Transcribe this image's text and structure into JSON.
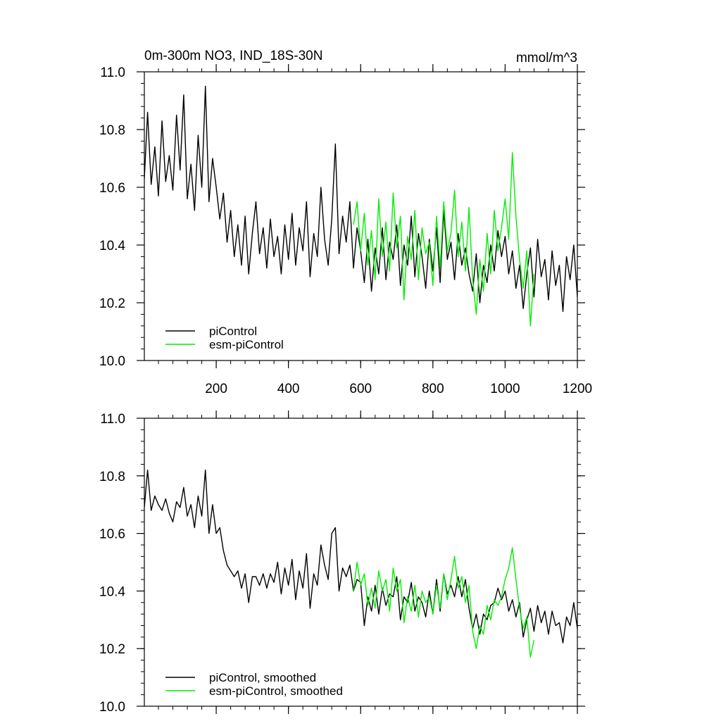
{
  "figure": {
    "title": "0m-300m NO3, IND_18S-30N",
    "units": "mmol/m^3"
  },
  "chart_data": [
    {
      "type": "line",
      "title": "0m-300m NO3, IND_18S-30N",
      "units": "mmol/m^3",
      "xlim": [
        1,
        1200
      ],
      "ylim": [
        10.0,
        11.0
      ],
      "x_ticks": [
        200,
        400,
        600,
        800,
        1000,
        1200
      ],
      "x_tick_labels": [
        "200",
        "400",
        "600",
        "800",
        "1000",
        "1200"
      ],
      "y_ticks": [
        10.0,
        10.2,
        10.4,
        10.6,
        10.8,
        11.0
      ],
      "y_tick_labels": [
        "10.0",
        "10.2",
        "10.4",
        "10.6",
        "10.8",
        "11.0"
      ],
      "legend_position": "bottom-left",
      "series": [
        {
          "name": "piControl",
          "color": "#000000",
          "x": [
            1,
            10,
            20,
            30,
            40,
            50,
            60,
            70,
            80,
            90,
            100,
            110,
            120,
            130,
            140,
            150,
            160,
            170,
            180,
            190,
            200,
            210,
            220,
            230,
            240,
            250,
            260,
            270,
            280,
            290,
            300,
            310,
            320,
            330,
            340,
            350,
            360,
            370,
            380,
            390,
            400,
            410,
            420,
            430,
            440,
            450,
            460,
            470,
            480,
            490,
            500,
            510,
            520,
            530,
            540,
            550,
            560,
            570,
            580,
            590,
            600,
            610,
            620,
            630,
            640,
            650,
            660,
            670,
            680,
            690,
            700,
            710,
            720,
            730,
            740,
            750,
            760,
            770,
            780,
            790,
            800,
            810,
            820,
            830,
            840,
            850,
            860,
            870,
            880,
            890,
            900,
            910,
            920,
            930,
            940,
            950,
            960,
            970,
            980,
            990,
            1000,
            1010,
            1020,
            1030,
            1040,
            1050,
            1060,
            1070,
            1080,
            1090,
            1100,
            1110,
            1120,
            1130,
            1140,
            1150,
            1160,
            1170,
            1180,
            1190,
            1200
          ],
          "values": [
            10.63,
            10.86,
            10.61,
            10.74,
            10.57,
            10.83,
            10.62,
            10.71,
            10.59,
            10.85,
            10.66,
            10.92,
            10.56,
            10.68,
            10.52,
            10.78,
            10.6,
            10.95,
            10.55,
            10.7,
            10.6,
            10.49,
            10.58,
            10.41,
            10.52,
            10.36,
            10.47,
            10.33,
            10.5,
            10.3,
            10.44,
            10.55,
            10.37,
            10.46,
            10.32,
            10.49,
            10.36,
            10.43,
            10.3,
            10.47,
            10.35,
            10.51,
            10.33,
            10.46,
            10.38,
            10.55,
            10.29,
            10.44,
            10.36,
            10.6,
            10.42,
            10.33,
            10.49,
            10.75,
            10.37,
            10.5,
            10.41,
            10.55,
            10.32,
            10.46,
            10.38,
            10.27,
            10.42,
            10.24,
            10.39,
            10.3,
            10.46,
            10.28,
            10.41,
            10.35,
            10.47,
            10.26,
            10.4,
            10.33,
            10.5,
            10.29,
            10.44,
            10.36,
            10.25,
            10.42,
            10.31,
            10.46,
            10.27,
            10.52,
            10.35,
            10.41,
            10.28,
            10.44,
            10.33,
            10.39,
            10.3,
            10.24,
            10.37,
            10.2,
            10.33,
            10.27,
            10.4,
            10.31,
            10.45,
            10.36,
            10.43,
            10.3,
            10.38,
            10.25,
            10.33,
            10.18,
            10.3,
            10.39,
            10.22,
            10.42,
            10.29,
            10.35,
            10.21,
            10.38,
            10.26,
            10.33,
            10.17,
            10.36,
            10.28,
            10.4,
            10.22
          ]
        },
        {
          "name": "esm-piControl",
          "color": "#00ee00",
          "x": [
            580,
            590,
            600,
            610,
            620,
            630,
            640,
            650,
            660,
            670,
            680,
            690,
            700,
            710,
            720,
            730,
            740,
            750,
            760,
            770,
            780,
            790,
            800,
            810,
            820,
            830,
            840,
            850,
            860,
            870,
            880,
            890,
            900,
            910,
            920,
            930,
            940,
            950,
            960,
            970,
            980,
            990,
            1000,
            1010,
            1020,
            1030,
            1040,
            1050,
            1060,
            1070,
            1080
          ],
          "values": [
            10.47,
            10.55,
            10.38,
            10.51,
            10.33,
            10.45,
            10.28,
            10.56,
            10.36,
            10.48,
            10.31,
            10.58,
            10.39,
            10.5,
            10.21,
            10.43,
            10.35,
            10.52,
            10.28,
            10.46,
            10.37,
            10.41,
            10.26,
            10.5,
            10.32,
            10.55,
            10.38,
            10.44,
            10.59,
            10.36,
            10.48,
            10.31,
            10.53,
            10.28,
            10.16,
            10.35,
            10.24,
            10.44,
            10.3,
            10.52,
            10.38,
            10.46,
            10.56,
            10.42,
            10.72,
            10.5,
            10.35,
            10.25,
            10.38,
            10.12,
            10.3
          ]
        }
      ]
    },
    {
      "type": "line",
      "xlim": [
        1,
        1200
      ],
      "ylim": [
        10.0,
        11.0
      ],
      "x_ticks": [
        200,
        400,
        600,
        800,
        1000,
        1200
      ],
      "y_ticks": [
        10.0,
        10.2,
        10.4,
        10.6,
        10.8,
        11.0
      ],
      "y_tick_labels": [
        "10.0",
        "10.2",
        "10.4",
        "10.6",
        "10.8",
        "11.0"
      ],
      "legend_position": "bottom-left",
      "series": [
        {
          "name": "piControl, smoothed",
          "color": "#000000",
          "x": [
            1,
            10,
            20,
            30,
            40,
            50,
            60,
            70,
            80,
            90,
            100,
            110,
            120,
            130,
            140,
            150,
            160,
            170,
            180,
            190,
            200,
            210,
            220,
            230,
            240,
            250,
            260,
            270,
            280,
            290,
            300,
            310,
            320,
            330,
            340,
            350,
            360,
            370,
            380,
            390,
            400,
            410,
            420,
            430,
            440,
            450,
            460,
            470,
            480,
            490,
            500,
            510,
            520,
            530,
            540,
            550,
            560,
            570,
            580,
            590,
            600,
            610,
            620,
            630,
            640,
            650,
            660,
            670,
            680,
            690,
            700,
            710,
            720,
            730,
            740,
            750,
            760,
            770,
            780,
            790,
            800,
            810,
            820,
            830,
            840,
            850,
            860,
            870,
            880,
            890,
            900,
            910,
            920,
            930,
            940,
            950,
            960,
            970,
            980,
            990,
            1000,
            1010,
            1020,
            1030,
            1040,
            1050,
            1060,
            1070,
            1080,
            1090,
            1100,
            1110,
            1120,
            1130,
            1140,
            1150,
            1160,
            1170,
            1180,
            1190,
            1200
          ],
          "values": [
            10.69,
            10.82,
            10.68,
            10.73,
            10.7,
            10.68,
            10.72,
            10.67,
            10.64,
            10.71,
            10.69,
            10.76,
            10.66,
            10.7,
            10.62,
            10.73,
            10.66,
            10.82,
            10.6,
            10.7,
            10.6,
            10.62,
            10.54,
            10.49,
            10.47,
            10.45,
            10.47,
            10.41,
            10.46,
            10.36,
            10.45,
            10.45,
            10.42,
            10.46,
            10.41,
            10.46,
            10.43,
            10.5,
            10.39,
            10.48,
            10.42,
            10.51,
            10.37,
            10.47,
            10.41,
            10.53,
            10.34,
            10.46,
            10.42,
            10.56,
            10.49,
            10.44,
            10.6,
            10.62,
            10.4,
            10.48,
            10.45,
            10.49,
            10.4,
            10.44,
            10.43,
            10.28,
            10.38,
            10.33,
            10.42,
            10.32,
            10.41,
            10.35,
            10.39,
            10.38,
            10.45,
            10.3,
            10.38,
            10.36,
            10.43,
            10.33,
            10.38,
            10.36,
            10.31,
            10.4,
            10.32,
            10.44,
            10.33,
            10.46,
            10.39,
            10.42,
            10.38,
            10.45,
            10.38,
            10.44,
            10.34,
            10.27,
            10.32,
            10.25,
            10.32,
            10.3,
            10.35,
            10.36,
            10.41,
            10.37,
            10.4,
            10.33,
            10.37,
            10.31,
            10.36,
            10.24,
            10.3,
            10.34,
            10.26,
            10.35,
            10.29,
            10.33,
            10.25,
            10.33,
            10.28,
            10.29,
            10.22,
            10.31,
            10.28,
            10.36,
            10.27
          ]
        },
        {
          "name": "esm-piControl, smoothed",
          "color": "#00ee00",
          "x": [
            580,
            590,
            600,
            610,
            620,
            630,
            640,
            650,
            660,
            670,
            680,
            690,
            700,
            710,
            720,
            730,
            740,
            750,
            760,
            770,
            780,
            790,
            800,
            810,
            820,
            830,
            840,
            850,
            860,
            870,
            880,
            890,
            900,
            910,
            920,
            930,
            940,
            950,
            960,
            970,
            980,
            990,
            1000,
            1010,
            1020,
            1030,
            1040,
            1050,
            1060,
            1070,
            1080
          ],
          "values": [
            10.4,
            10.5,
            10.42,
            10.46,
            10.35,
            10.41,
            10.34,
            10.47,
            10.4,
            10.44,
            10.33,
            10.48,
            10.4,
            10.44,
            10.29,
            10.38,
            10.33,
            10.42,
            10.31,
            10.4,
            10.36,
            10.38,
            10.32,
            10.42,
            10.34,
            10.46,
            10.37,
            10.44,
            10.52,
            10.41,
            10.45,
            10.36,
            10.42,
            10.26,
            10.2,
            10.28,
            10.25,
            10.35,
            10.3,
            10.37,
            10.35,
            10.38,
            10.44,
            10.48,
            10.55,
            10.44,
            10.34,
            10.27,
            10.31,
            10.17,
            10.23
          ]
        }
      ]
    }
  ]
}
